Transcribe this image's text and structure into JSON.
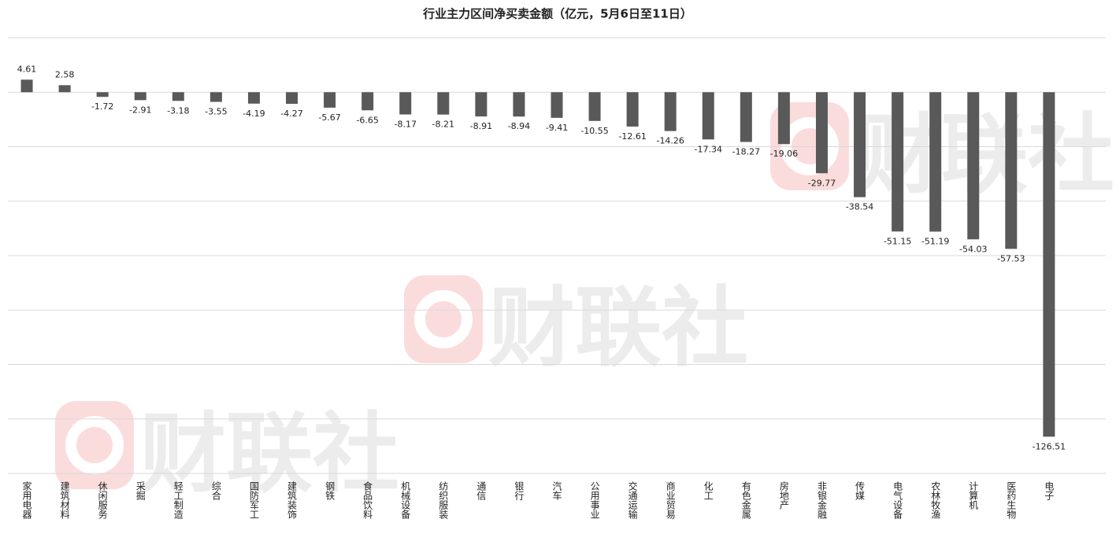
{
  "chart_data": {
    "type": "bar",
    "title": "行业主力区间净买卖金额（亿元，5月6日至11日）",
    "watermark": "财联社",
    "categories": [
      "家用电器",
      "建筑材料",
      "休闲服务",
      "采掘",
      "轻工制造",
      "综合",
      "国防军工",
      "建筑装饰",
      "钢铁",
      "食品饮料",
      "机械设备",
      "纺织服装",
      "通信",
      "银行",
      "汽车",
      "公用事业",
      "交通运输",
      "商业贸易",
      "化工",
      "有色金属",
      "房地产",
      "非银金融",
      "传媒",
      "电气设备",
      "农林牧渔",
      "计算机",
      "医药生物",
      "电子"
    ],
    "values": [
      4.61,
      2.58,
      -1.72,
      -2.91,
      -3.18,
      -3.55,
      -4.19,
      -4.27,
      -5.67,
      -6.65,
      -8.17,
      -8.21,
      -8.91,
      -8.94,
      -9.41,
      -10.55,
      -12.61,
      -14.26,
      -17.34,
      -18.27,
      -19.06,
      -29.77,
      -38.54,
      -51.15,
      -51.19,
      -54.03,
      -57.53,
      -126.51
    ],
    "color": "#595959",
    "ylim": [
      -140,
      20
    ],
    "yticks": [
      -140,
      -120,
      -100,
      -80,
      -60,
      -40,
      -20,
      0,
      20
    ],
    "grid": true
  }
}
